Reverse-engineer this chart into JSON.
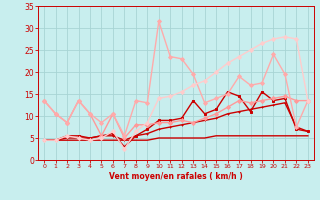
{
  "bg_color": "#c8eeee",
  "grid_color": "#a8d4d4",
  "text_color": "#cc0000",
  "xlabel": "Vent moyen/en rafales ( km/h )",
  "xlim": [
    -0.5,
    23.5
  ],
  "ylim": [
    0,
    35
  ],
  "yticks": [
    0,
    5,
    10,
    15,
    20,
    25,
    30,
    35
  ],
  "xticks": [
    0,
    1,
    2,
    3,
    4,
    5,
    6,
    7,
    8,
    9,
    10,
    11,
    12,
    13,
    14,
    15,
    16,
    17,
    18,
    19,
    20,
    21,
    22,
    23
  ],
  "series": [
    {
      "x": [
        0,
        1,
        2,
        3,
        4,
        5,
        6,
        7,
        8,
        9,
        10,
        11,
        12,
        13,
        14,
        15,
        16,
        17,
        18,
        19,
        20,
        21,
        22,
        23
      ],
      "y": [
        4.5,
        4.5,
        4.5,
        4.5,
        4.5,
        4.5,
        4.5,
        4.5,
        4.5,
        4.5,
        5.0,
        5.0,
        5.0,
        5.0,
        5.0,
        5.5,
        5.5,
        5.5,
        5.5,
        5.5,
        5.5,
        5.5,
        5.5,
        5.5
      ],
      "color": "#cc0000",
      "lw": 1.0,
      "marker": null
    },
    {
      "x": [
        0,
        1,
        2,
        3,
        4,
        5,
        6,
        7,
        8,
        9,
        10,
        11,
        12,
        13,
        14,
        15,
        16,
        17,
        18,
        19,
        20,
        21,
        22,
        23
      ],
      "y": [
        4.5,
        4.5,
        5.0,
        5.0,
        5.0,
        5.5,
        5.5,
        4.5,
        5.5,
        6.0,
        7.0,
        7.5,
        8.0,
        8.5,
        9.0,
        9.5,
        10.5,
        11.0,
        11.5,
        12.0,
        12.5,
        13.0,
        7.5,
        6.5
      ],
      "color": "#cc0000",
      "lw": 1.0,
      "marker": "+"
    },
    {
      "x": [
        0,
        1,
        2,
        3,
        4,
        5,
        6,
        7,
        8,
        9,
        10,
        11,
        12,
        13,
        14,
        15,
        16,
        17,
        18,
        19,
        20,
        21,
        22,
        23
      ],
      "y": [
        4.5,
        4.5,
        5.5,
        5.5,
        5.0,
        5.5,
        6.0,
        3.0,
        5.5,
        7.0,
        9.0,
        9.0,
        9.5,
        13.5,
        10.5,
        11.5,
        15.5,
        14.5,
        11.0,
        15.5,
        13.5,
        14.0,
        7.0,
        6.5
      ],
      "color": "#cc0000",
      "lw": 1.0,
      "marker": "s"
    },
    {
      "x": [
        0,
        1,
        2,
        3,
        4,
        5,
        6,
        7,
        8,
        9,
        10,
        11,
        12,
        13,
        14,
        15,
        16,
        17,
        18,
        19,
        20,
        21,
        22,
        23
      ],
      "y": [
        13.5,
        10.5,
        8.5,
        13.5,
        10.5,
        5.5,
        10.5,
        5.0,
        8.0,
        8.0,
        8.5,
        8.5,
        9.0,
        8.5,
        9.5,
        10.5,
        12.0,
        13.5,
        13.0,
        13.5,
        14.0,
        14.5,
        13.5,
        13.5
      ],
      "color": "#ff9999",
      "lw": 1.0,
      "marker": "D"
    },
    {
      "x": [
        0,
        1,
        2,
        3,
        4,
        5,
        6,
        7,
        8,
        9,
        10,
        11,
        12,
        13,
        14,
        15,
        16,
        17,
        18,
        19,
        20,
        21,
        22,
        23
      ],
      "y": [
        13.5,
        10.5,
        8.5,
        13.5,
        10.5,
        8.5,
        10.5,
        5.5,
        13.5,
        13.0,
        31.5,
        23.5,
        23.0,
        19.5,
        13.0,
        14.0,
        15.0,
        19.0,
        17.0,
        17.5,
        24.0,
        19.5,
        7.5,
        13.5
      ],
      "color": "#ffaaaa",
      "lw": 1.0,
      "marker": "D"
    },
    {
      "x": [
        0,
        1,
        2,
        3,
        4,
        5,
        6,
        7,
        8,
        9,
        10,
        11,
        12,
        13,
        14,
        15,
        16,
        17,
        18,
        19,
        20,
        21,
        22,
        23
      ],
      "y": [
        4.5,
        4.5,
        5.5,
        5.0,
        4.5,
        5.0,
        6.5,
        2.5,
        6.5,
        8.5,
        14.0,
        14.5,
        15.5,
        17.0,
        18.0,
        20.0,
        22.0,
        23.5,
        25.0,
        26.5,
        27.5,
        28.0,
        27.5,
        13.5
      ],
      "color": "#ffcccc",
      "lw": 1.0,
      "marker": "D"
    }
  ]
}
